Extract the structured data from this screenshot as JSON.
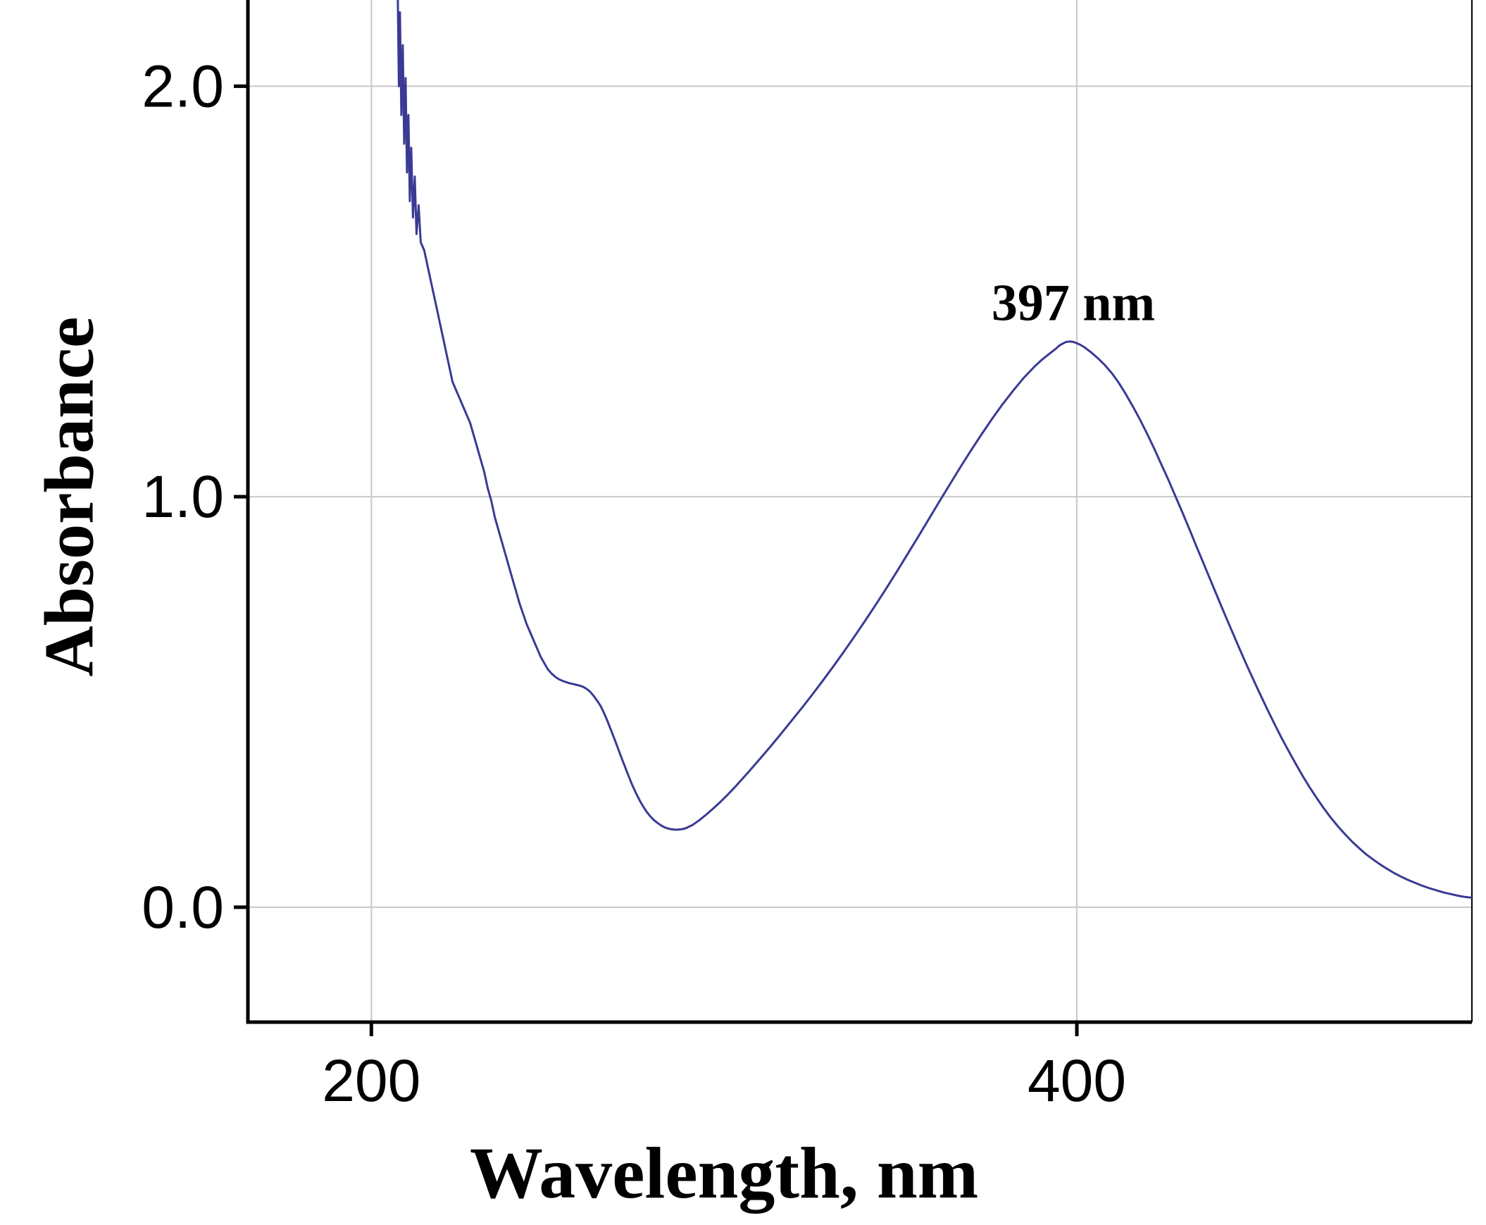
{
  "figure": {
    "background": "#ffffff",
    "grid_color": "#c8c8c8",
    "axis_color": "#000000"
  },
  "chart_data": {
    "type": "line",
    "title": "",
    "xlabel": "Wavelength, nm",
    "ylabel": "Absorbance",
    "xlim": [
      165,
      512
    ],
    "ylim": [
      -0.28,
      2.21
    ],
    "x_ticks": [
      200,
      400
    ],
    "x_tick_labels": [
      "200",
      "400"
    ],
    "y_ticks": [
      0.0,
      1.0,
      2.0
    ],
    "y_tick_labels": [
      "0.0",
      "1.0",
      "2.0"
    ],
    "grid": true,
    "legend": false,
    "annotations": [
      {
        "text": "397 nm",
        "x": 399,
        "y": 1.43
      }
    ],
    "series": [
      {
        "name": "absorbance-spectrum",
        "color": "#3a3a94",
        "points": [
          [
            207.5,
            2.21
          ],
          [
            207.8,
            2.0
          ],
          [
            208.1,
            2.18
          ],
          [
            208.5,
            1.93
          ],
          [
            208.9,
            2.1
          ],
          [
            209.3,
            1.86
          ],
          [
            209.7,
            2.02
          ],
          [
            210.1,
            1.79
          ],
          [
            210.5,
            1.93
          ],
          [
            210.9,
            1.72
          ],
          [
            211.3,
            1.85
          ],
          [
            211.8,
            1.68
          ],
          [
            212.3,
            1.78
          ],
          [
            212.8,
            1.64
          ],
          [
            213.4,
            1.71
          ],
          [
            214,
            1.62
          ],
          [
            215,
            1.6
          ],
          [
            216,
            1.56
          ],
          [
            217,
            1.52
          ],
          [
            218,
            1.48
          ],
          [
            219,
            1.44
          ],
          [
            220,
            1.4
          ],
          [
            221,
            1.36
          ],
          [
            222,
            1.32
          ],
          [
            223,
            1.28
          ],
          [
            224,
            1.26
          ],
          [
            225,
            1.24
          ],
          [
            226,
            1.22
          ],
          [
            227,
            1.2
          ],
          [
            228,
            1.18
          ],
          [
            229,
            1.15
          ],
          [
            230,
            1.12
          ],
          [
            231,
            1.09
          ],
          [
            232,
            1.06
          ],
          [
            233,
            1.02
          ],
          [
            234,
            0.99
          ],
          [
            235,
            0.95
          ],
          [
            236,
            0.92
          ],
          [
            237,
            0.89
          ],
          [
            238,
            0.86
          ],
          [
            239,
            0.83
          ],
          [
            240,
            0.8
          ],
          [
            241,
            0.77
          ],
          [
            242,
            0.74
          ],
          [
            243,
            0.715
          ],
          [
            244,
            0.69
          ],
          [
            245,
            0.67
          ],
          [
            246,
            0.65
          ],
          [
            247,
            0.63
          ],
          [
            248,
            0.61
          ],
          [
            249,
            0.595
          ],
          [
            250,
            0.58
          ],
          [
            251,
            0.57
          ],
          [
            252,
            0.562
          ],
          [
            253,
            0.556
          ],
          [
            254,
            0.552
          ],
          [
            255,
            0.549
          ],
          [
            256,
            0.546
          ],
          [
            257,
            0.544
          ],
          [
            258,
            0.542
          ],
          [
            259,
            0.54
          ],
          [
            260,
            0.537
          ],
          [
            261,
            0.532
          ],
          [
            262,
            0.525
          ],
          [
            263,
            0.515
          ],
          [
            264,
            0.503
          ],
          [
            265,
            0.49
          ],
          [
            266,
            0.472
          ],
          [
            267,
            0.452
          ],
          [
            268,
            0.43
          ],
          [
            269,
            0.408
          ],
          [
            270,
            0.385
          ],
          [
            271,
            0.362
          ],
          [
            272,
            0.34
          ],
          [
            273,
            0.318
          ],
          [
            274,
            0.297
          ],
          [
            275,
            0.278
          ],
          [
            276,
            0.261
          ],
          [
            277,
            0.246
          ],
          [
            278,
            0.233
          ],
          [
            279,
            0.222
          ],
          [
            280,
            0.213
          ],
          [
            281,
            0.206
          ],
          [
            282,
            0.2
          ],
          [
            283,
            0.195
          ],
          [
            284,
            0.192
          ],
          [
            285,
            0.19
          ],
          [
            286,
            0.189
          ],
          [
            287,
            0.189
          ],
          [
            288,
            0.19
          ],
          [
            289,
            0.192
          ],
          [
            290,
            0.196
          ],
          [
            291,
            0.2
          ],
          [
            292,
            0.206
          ],
          [
            293,
            0.212
          ],
          [
            294,
            0.219
          ],
          [
            295,
            0.226
          ],
          [
            297,
            0.241
          ],
          [
            299,
            0.257
          ],
          [
            301,
            0.274
          ],
          [
            303,
            0.292
          ],
          [
            305,
            0.311
          ],
          [
            307,
            0.33
          ],
          [
            310,
            0.36
          ],
          [
            313,
            0.39
          ],
          [
            316,
            0.421
          ],
          [
            319,
            0.453
          ],
          [
            322,
            0.485
          ],
          [
            325,
            0.518
          ],
          [
            328,
            0.552
          ],
          [
            331,
            0.587
          ],
          [
            334,
            0.623
          ],
          [
            337,
            0.66
          ],
          [
            340,
            0.698
          ],
          [
            343,
            0.737
          ],
          [
            346,
            0.777
          ],
          [
            349,
            0.818
          ],
          [
            352,
            0.86
          ],
          [
            355,
            0.902
          ],
          [
            358,
            0.945
          ],
          [
            361,
            0.988
          ],
          [
            364,
            1.03
          ],
          [
            367,
            1.072
          ],
          [
            370,
            1.113
          ],
          [
            373,
            1.152
          ],
          [
            376,
            1.19
          ],
          [
            379,
            1.226
          ],
          [
            382,
            1.259
          ],
          [
            385,
            1.29
          ],
          [
            388,
            1.317
          ],
          [
            390,
            1.333
          ],
          [
            392,
            1.347
          ],
          [
            394,
            1.36
          ],
          [
            395,
            1.368
          ],
          [
            396,
            1.373
          ],
          [
            397,
            1.377
          ],
          [
            398,
            1.378
          ],
          [
            399,
            1.377
          ],
          [
            400,
            1.374
          ],
          [
            401,
            1.37
          ],
          [
            402,
            1.365
          ],
          [
            404,
            1.352
          ],
          [
            406,
            1.337
          ],
          [
            408,
            1.32
          ],
          [
            410,
            1.3
          ],
          [
            412,
            1.276
          ],
          [
            414,
            1.248
          ],
          [
            416,
            1.218
          ],
          [
            418,
            1.186
          ],
          [
            420,
            1.152
          ],
          [
            422,
            1.116
          ],
          [
            424,
            1.078
          ],
          [
            426,
            1.04
          ],
          [
            428,
            1.0
          ],
          [
            430,
            0.96
          ],
          [
            432,
            0.919
          ],
          [
            434,
            0.877
          ],
          [
            436,
            0.836
          ],
          [
            438,
            0.794
          ],
          [
            440,
            0.753
          ],
          [
            442,
            0.712
          ],
          [
            444,
            0.672
          ],
          [
            446,
            0.632
          ],
          [
            448,
            0.593
          ],
          [
            450,
            0.555
          ],
          [
            452,
            0.518
          ],
          [
            454,
            0.482
          ],
          [
            456,
            0.447
          ],
          [
            458,
            0.413
          ],
          [
            460,
            0.381
          ],
          [
            462,
            0.35
          ],
          [
            464,
            0.32
          ],
          [
            466,
            0.292
          ],
          [
            468,
            0.266
          ],
          [
            470,
            0.241
          ],
          [
            472,
            0.218
          ],
          [
            474,
            0.197
          ],
          [
            476,
            0.178
          ],
          [
            478,
            0.16
          ],
          [
            480,
            0.144
          ],
          [
            482,
            0.129
          ],
          [
            484,
            0.116
          ],
          [
            486,
            0.104
          ],
          [
            488,
            0.093
          ],
          [
            490,
            0.083
          ],
          [
            492,
            0.074
          ],
          [
            494,
            0.066
          ],
          [
            496,
            0.059
          ],
          [
            498,
            0.052
          ],
          [
            500,
            0.046
          ],
          [
            502,
            0.041
          ],
          [
            504,
            0.036
          ],
          [
            506,
            0.032
          ],
          [
            508,
            0.028
          ],
          [
            510,
            0.025
          ],
          [
            512,
            0.023
          ]
        ]
      }
    ]
  }
}
